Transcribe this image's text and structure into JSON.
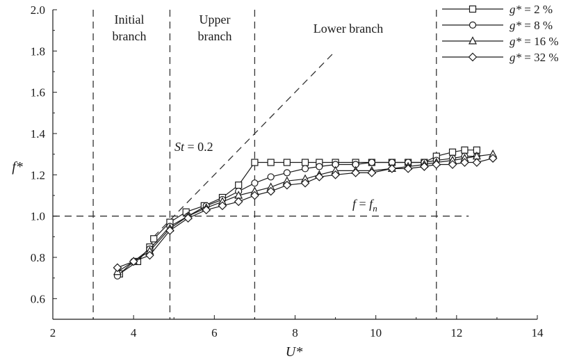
{
  "chart_data": {
    "type": "line",
    "xlabel": "U*",
    "ylabel": "f*",
    "xlim": [
      2,
      14
    ],
    "ylim": [
      0.5,
      2.0
    ],
    "x_ticks": [
      "2",
      "4",
      "6",
      "8",
      "10",
      "12",
      "14"
    ],
    "y_ticks": [
      "0.6",
      "0.8",
      "1.0",
      "1.2",
      "1.4",
      "1.6",
      "1.8",
      "2.0"
    ],
    "x_tick_values": [
      2,
      4,
      6,
      8,
      10,
      12,
      14
    ],
    "y_tick_values": [
      0.6,
      0.8,
      1.0,
      1.2,
      1.4,
      1.6,
      1.8,
      2.0
    ],
    "legend_position": "top-right",
    "series": [
      {
        "name": "g* = 2 %",
        "marker": "square",
        "x": [
          3.65,
          4.1,
          4.4,
          4.5,
          4.9,
          5.3,
          5.75,
          6.2,
          6.6,
          7.0,
          7.4,
          7.8,
          8.25,
          8.6,
          9.0,
          9.5,
          9.9,
          10.4,
          10.8,
          11.2,
          11.5,
          11.9,
          12.2,
          12.5
        ],
        "y": [
          0.72,
          0.78,
          0.85,
          0.89,
          0.97,
          1.02,
          1.05,
          1.09,
          1.15,
          1.26,
          1.26,
          1.26,
          1.26,
          1.26,
          1.26,
          1.26,
          1.26,
          1.26,
          1.26,
          1.26,
          1.29,
          1.31,
          1.32,
          1.32
        ]
      },
      {
        "name": "g* = 8 %",
        "marker": "circle",
        "x": [
          3.6,
          4.0,
          4.4,
          4.9,
          5.35,
          5.8,
          6.2,
          6.6,
          7.0,
          7.4,
          7.8,
          8.25,
          8.6,
          9.0,
          9.5,
          9.9,
          10.4,
          10.8,
          11.2,
          11.5,
          11.9,
          12.2,
          12.5
        ],
        "y": [
          0.71,
          0.78,
          0.84,
          0.95,
          1.0,
          1.05,
          1.08,
          1.12,
          1.16,
          1.19,
          1.21,
          1.23,
          1.24,
          1.25,
          1.25,
          1.26,
          1.26,
          1.26,
          1.26,
          1.27,
          1.28,
          1.29,
          1.29
        ]
      },
      {
        "name": "g* = 16 %",
        "marker": "triangle",
        "x": [
          3.6,
          4.0,
          4.4,
          4.9,
          5.35,
          5.8,
          6.2,
          6.6,
          7.0,
          7.4,
          7.8,
          8.25,
          8.6,
          9.0,
          9.5,
          9.9,
          10.4,
          10.8,
          11.2,
          11.5,
          11.9,
          12.2,
          12.5,
          12.9
        ],
        "y": [
          0.73,
          0.78,
          0.83,
          0.94,
          1.0,
          1.04,
          1.07,
          1.1,
          1.12,
          1.14,
          1.17,
          1.18,
          1.2,
          1.22,
          1.22,
          1.22,
          1.23,
          1.24,
          1.25,
          1.26,
          1.27,
          1.28,
          1.29,
          1.3
        ]
      },
      {
        "name": "g* = 32 %",
        "marker": "diamond",
        "x": [
          3.6,
          4.0,
          4.4,
          4.9,
          5.35,
          5.8,
          6.2,
          6.6,
          7.0,
          7.4,
          7.8,
          8.25,
          8.6,
          9.0,
          9.5,
          9.9,
          10.4,
          10.8,
          11.2,
          11.5,
          11.9,
          12.2,
          12.5,
          12.9
        ],
        "y": [
          0.75,
          0.78,
          0.81,
          0.93,
          0.99,
          1.03,
          1.05,
          1.07,
          1.1,
          1.12,
          1.15,
          1.16,
          1.19,
          1.2,
          1.21,
          1.21,
          1.23,
          1.23,
          1.24,
          1.25,
          1.25,
          1.26,
          1.26,
          1.28
        ]
      }
    ],
    "reference_lines": [
      {
        "kind": "vertical",
        "x": 3.0,
        "style": "dashed"
      },
      {
        "kind": "vertical",
        "x": 4.9,
        "style": "dashed"
      },
      {
        "kind": "vertical",
        "x": 7.0,
        "style": "dashed"
      },
      {
        "kind": "vertical",
        "x": 11.5,
        "style": "dashed"
      },
      {
        "kind": "horizontal",
        "y": 1.0,
        "x_range": [
          2,
          12.3
        ],
        "style": "dashed",
        "label": "f = fn"
      },
      {
        "kind": "slope",
        "label": "St = 0.2",
        "x_range": [
          4.5,
          9.0
        ],
        "y_range": [
          0.9,
          1.8
        ],
        "style": "dashed"
      }
    ],
    "region_labels": [
      {
        "line1": "Initial",
        "line2": "branch"
      },
      {
        "line1": "Upper",
        "line2": "branch"
      },
      {
        "line1": "Lower branch",
        "line2": ""
      }
    ],
    "annotations": {
      "st_prefix": "St",
      "st_suffix": " = 0.2",
      "fn_label_f": "f",
      "fn_label_eq": " = ",
      "fn_label_fn": "f",
      "fn_label_sub": "n"
    }
  }
}
